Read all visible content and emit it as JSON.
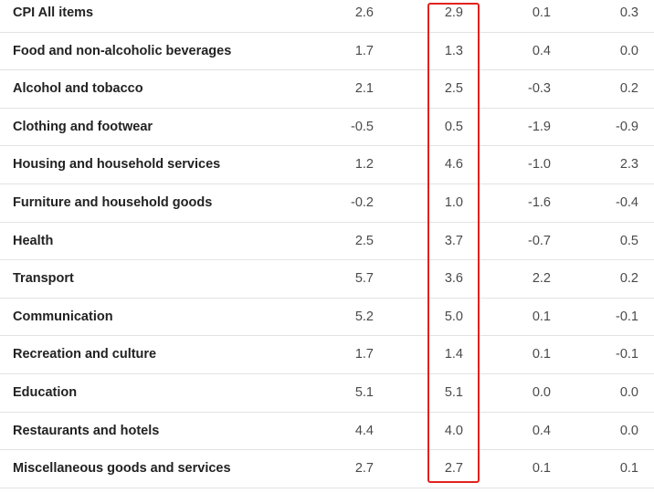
{
  "table": {
    "rows": [
      {
        "label": "CPI All items",
        "values": [
          "2.6",
          "2.9",
          "0.1",
          "0.3"
        ]
      },
      {
        "label": "Food and non-alcoholic beverages",
        "values": [
          "1.7",
          "1.3",
          "0.4",
          "0.0"
        ]
      },
      {
        "label": "Alcohol and tobacco",
        "values": [
          "2.1",
          "2.5",
          "-0.3",
          "0.2"
        ]
      },
      {
        "label": "Clothing and footwear",
        "values": [
          "-0.5",
          "0.5",
          "-1.9",
          "-0.9"
        ]
      },
      {
        "label": "Housing and household services",
        "values": [
          "1.2",
          "4.6",
          "-1.0",
          "2.3"
        ]
      },
      {
        "label": "Furniture and household goods",
        "values": [
          "-0.2",
          "1.0",
          "-1.6",
          "-0.4"
        ]
      },
      {
        "label": "Health",
        "values": [
          "2.5",
          "3.7",
          "-0.7",
          "0.5"
        ]
      },
      {
        "label": "Transport",
        "values": [
          "5.7",
          "3.6",
          "2.2",
          "0.2"
        ]
      },
      {
        "label": "Communication",
        "values": [
          "5.2",
          "5.0",
          "0.1",
          "-0.1"
        ]
      },
      {
        "label": "Recreation and culture",
        "values": [
          "1.7",
          "1.4",
          "0.1",
          "-0.1"
        ]
      },
      {
        "label": "Education",
        "values": [
          "5.1",
          "5.1",
          "0.0",
          "0.0"
        ]
      },
      {
        "label": "Restaurants and hotels",
        "values": [
          "4.4",
          "4.0",
          "0.4",
          "0.0"
        ]
      },
      {
        "label": "Miscellaneous goods and services",
        "values": [
          "2.7",
          "2.7",
          "0.1",
          "0.1"
        ]
      }
    ]
  },
  "highlight": {
    "column_index": 1,
    "color": "#e0231b"
  }
}
